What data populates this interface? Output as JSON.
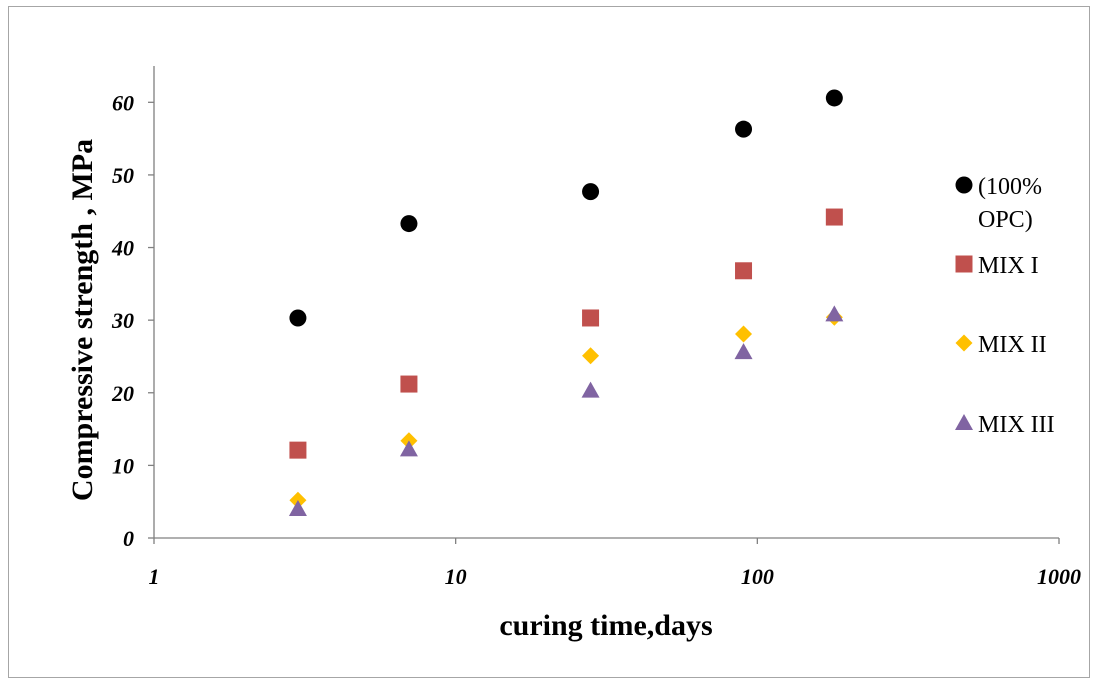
{
  "chart_data": {
    "type": "scatter",
    "title": "",
    "xlabel": "curing time,days",
    "ylabel": "Compressive strength , MPa",
    "xscale": "log",
    "xlim": [
      1,
      1000
    ],
    "ylim": [
      0,
      65
    ],
    "x_ticks": [
      "1",
      "10",
      "100",
      "1000"
    ],
    "y_ticks": [
      "0",
      "10",
      "20",
      "30",
      "40",
      "50",
      "60"
    ],
    "grid": false,
    "legend_position": "right",
    "series": [
      {
        "name": "(100% OPC)",
        "legend_lines": [
          "(100%",
          "OPC)"
        ],
        "marker": "circle",
        "color": "#000000",
        "points": [
          [
            3,
            30.3
          ],
          [
            7,
            43.3
          ],
          [
            28,
            47.7
          ],
          [
            90,
            56.3
          ],
          [
            180,
            60.6
          ]
        ]
      },
      {
        "name": "MIX I",
        "legend_lines": [
          "MIX I"
        ],
        "marker": "square",
        "color": "#c0504d",
        "points": [
          [
            3,
            12.1
          ],
          [
            7,
            21.2
          ],
          [
            28,
            30.3
          ],
          [
            90,
            36.8
          ],
          [
            180,
            44.2
          ]
        ]
      },
      {
        "name": "MIX II",
        "legend_lines": [
          "MIX II"
        ],
        "marker": "diamond",
        "color": "#ffc000",
        "points": [
          [
            3,
            5.2
          ],
          [
            7,
            13.4
          ],
          [
            28,
            25.1
          ],
          [
            90,
            28.1
          ],
          [
            180,
            30.4
          ]
        ]
      },
      {
        "name": "MIX III",
        "legend_lines": [
          "MIX III"
        ],
        "marker": "triangle",
        "color": "#8064a2",
        "points": [
          [
            3,
            4.0
          ],
          [
            7,
            12.2
          ],
          [
            28,
            20.3
          ],
          [
            90,
            25.6
          ],
          [
            180,
            30.8
          ]
        ]
      }
    ]
  }
}
